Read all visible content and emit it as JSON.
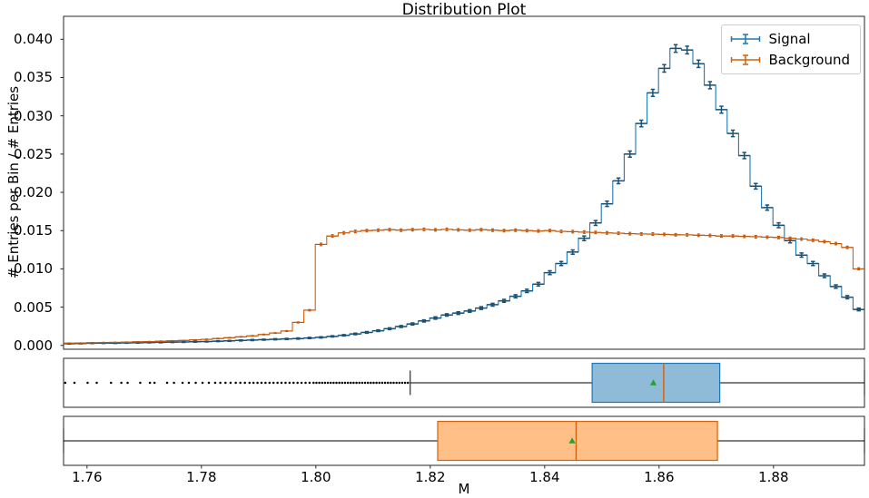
{
  "chart_data": {
    "type": "histogram",
    "title": "Distribution Plot",
    "xlabel": "M",
    "ylabel": "# Entries per Bin / # Entries",
    "xlim": [
      1.7559,
      1.8959
    ],
    "ylim": [
      -0.0005,
      0.043
    ],
    "grid": false,
    "legend_position": "upper right",
    "bin_start": 1.7559,
    "bin_width": 0.002,
    "x_ticks": [
      {
        "v": 1.76,
        "label": "1.76"
      },
      {
        "v": 1.78,
        "label": "1.78"
      },
      {
        "v": 1.8,
        "label": "1.80"
      },
      {
        "v": 1.82,
        "label": "1.82"
      },
      {
        "v": 1.84,
        "label": "1.84"
      },
      {
        "v": 1.86,
        "label": "1.86"
      },
      {
        "v": 1.88,
        "label": "1.88"
      }
    ],
    "y_ticks": [
      {
        "v": 0.0,
        "label": "0.000"
      },
      {
        "v": 0.005,
        "label": "0.005"
      },
      {
        "v": 0.01,
        "label": "0.010"
      },
      {
        "v": 0.015,
        "label": "0.015"
      },
      {
        "v": 0.02,
        "label": "0.020"
      },
      {
        "v": 0.025,
        "label": "0.025"
      },
      {
        "v": 0.03,
        "label": "0.030"
      },
      {
        "v": 0.035,
        "label": "0.035"
      },
      {
        "v": 0.04,
        "label": "0.040"
      }
    ],
    "series": [
      {
        "name": "Signal",
        "line_color": "#1f77b4",
        "marker_color": "#1a5276",
        "err_scale": 0.00254,
        "values": [
          0.00022,
          0.00025,
          0.00028,
          0.0003,
          0.0003,
          0.00033,
          0.00035,
          0.00038,
          0.0004,
          0.00043,
          0.00045,
          0.00048,
          0.0005,
          0.00055,
          0.0006,
          0.00065,
          0.0007,
          0.00075,
          0.0008,
          0.00085,
          0.0009,
          0.00097,
          0.00105,
          0.00118,
          0.00132,
          0.0015,
          0.0017,
          0.00192,
          0.00218,
          0.00247,
          0.0028,
          0.0032,
          0.00358,
          0.00398,
          0.00422,
          0.0045,
          0.00488,
          0.00532,
          0.00582,
          0.00642,
          0.00712,
          0.008,
          0.0095,
          0.0107,
          0.0122,
          0.014,
          0.016,
          0.0185,
          0.0215,
          0.025,
          0.029,
          0.033,
          0.0362,
          0.0388,
          0.0386,
          0.0368,
          0.034,
          0.0308,
          0.0277,
          0.0248,
          0.0208,
          0.018,
          0.0157,
          0.0137,
          0.0118,
          0.0107,
          0.0091,
          0.0077,
          0.0063,
          0.0047
        ]
      },
      {
        "name": "Background",
        "line_color": "#d2620c",
        "marker_color": "#c4560a",
        "err_scale": 0.0014,
        "values": [
          0.0003,
          0.00032,
          0.00035,
          0.00038,
          0.0004,
          0.00043,
          0.00047,
          0.0005,
          0.00055,
          0.0006,
          0.00065,
          0.00072,
          0.0008,
          0.0009,
          0.001,
          0.00112,
          0.00125,
          0.00142,
          0.00162,
          0.00188,
          0.003,
          0.0046,
          0.0132,
          0.0143,
          0.0147,
          0.0149,
          0.015,
          0.01505,
          0.01512,
          0.01506,
          0.01512,
          0.01516,
          0.0151,
          0.01516,
          0.0151,
          0.01505,
          0.01512,
          0.01506,
          0.015,
          0.01506,
          0.015,
          0.01495,
          0.015,
          0.0149,
          0.01486,
          0.0148,
          0.01476,
          0.0147,
          0.01466,
          0.0146,
          0.01456,
          0.01455,
          0.0145,
          0.01446,
          0.01445,
          0.0144,
          0.01436,
          0.0143,
          0.0143,
          0.01425,
          0.0142,
          0.01415,
          0.0141,
          0.014,
          0.0139,
          0.01375,
          0.01355,
          0.0133,
          0.0128,
          0.01
        ]
      }
    ],
    "boxplots": [
      {
        "name": "Signal",
        "fill": "#8fbbd9",
        "edge": "#1f77b4",
        "q1": 1.8483,
        "median": 1.8608,
        "q3": 1.8706,
        "whisker_low": 1.8165,
        "whisker_high": 1.8959,
        "mean": 1.859,
        "outliers": [
          1.7562,
          1.7578,
          1.7601,
          1.7617,
          1.7642,
          1.766,
          1.7671,
          1.7693,
          1.771,
          1.7718,
          1.774,
          1.7752,
          1.7767,
          1.7778,
          1.779,
          1.7802,
          1.7813,
          1.7824,
          1.7833,
          1.7842,
          1.7851,
          1.786,
          1.7868,
          1.7876,
          1.7884,
          1.7891,
          1.7898,
          1.7905,
          1.7912,
          1.7919,
          1.7926,
          1.7933,
          1.794,
          1.7947,
          1.7954,
          1.7961,
          1.7968,
          1.7975,
          1.7982,
          1.7989,
          1.7996,
          1.8001,
          1.8006,
          1.8011,
          1.8016,
          1.8021,
          1.8026,
          1.8031,
          1.8036,
          1.8041,
          1.8046,
          1.8051,
          1.8056,
          1.8061,
          1.8066,
          1.8071,
          1.8076,
          1.8081,
          1.8086,
          1.8091,
          1.8096,
          1.8101,
          1.8106,
          1.8111,
          1.8116,
          1.8121,
          1.8126,
          1.8131,
          1.8136,
          1.8141,
          1.8146,
          1.8151,
          1.8156,
          1.8161
        ]
      },
      {
        "name": "Background",
        "fill": "#ffbf86",
        "edge": "#d2620c",
        "q1": 1.8213,
        "median": 1.8455,
        "q3": 1.8702,
        "whisker_low": 1.7559,
        "whisker_high": 1.8959,
        "mean": 1.8448,
        "outliers": []
      }
    ],
    "box_style": {
      "median_color": "#d2620c",
      "mean_color": "#2ca02c",
      "flier_color": "#000000",
      "whisker_color": "#000000"
    }
  }
}
